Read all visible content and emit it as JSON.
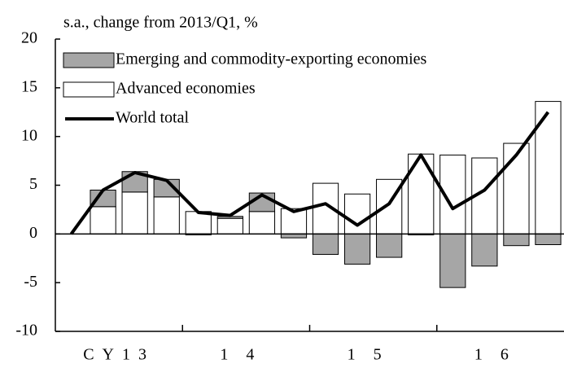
{
  "chart_data": {
    "type": "stacked-bar-line",
    "subtitle": "s.a., change from 2013/Q1, %",
    "categories": [
      null,
      null,
      null,
      null,
      null,
      null,
      null,
      null,
      null,
      null,
      null,
      null,
      null,
      null,
      null,
      null
    ],
    "category_groups": [
      "CY13",
      "14",
      "15",
      "16"
    ],
    "series": [
      {
        "name": "Emerging and commodity-exporting economies",
        "color": "#a6a6a6",
        "kind": "bar",
        "values": [
          null,
          1.7,
          2.1,
          1.8,
          -0.1,
          0.2,
          1.9,
          -0.4,
          -2.1,
          -3.1,
          -2.4,
          -0.1,
          -5.5,
          -3.3,
          -1.2,
          -1.1
        ]
      },
      {
        "name": "Advanced economies",
        "color": "#ffffff",
        "kind": "bar",
        "values": [
          null,
          2.8,
          4.3,
          3.8,
          2.3,
          1.6,
          2.3,
          2.6,
          5.2,
          4.1,
          5.6,
          8.2,
          8.1,
          7.8,
          9.3,
          13.6
        ]
      },
      {
        "name": "World total",
        "color": "#000000",
        "kind": "line",
        "values": [
          0,
          4.5,
          6.3,
          5.5,
          2.2,
          1.9,
          4.0,
          2.3,
          3.1,
          0.9,
          3.1,
          8.1,
          2.6,
          4.5,
          8.1,
          12.5
        ]
      }
    ],
    "ylim": [
      -10,
      20
    ],
    "yticks": [
      -10,
      -5,
      0,
      5,
      10,
      15,
      20
    ],
    "grid": false,
    "legend": "top-left"
  }
}
